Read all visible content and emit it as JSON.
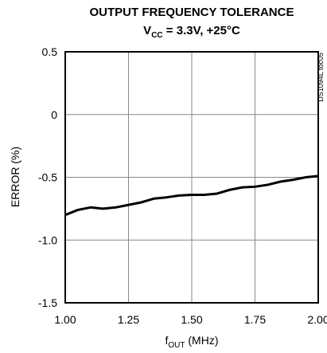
{
  "chart_data": {
    "type": "line",
    "title": "OUTPUT FREQUENCY TOLERANCE",
    "subtitle": [
      "V",
      "CC",
      " = 3.3V, +25°C"
    ],
    "x_label": [
      "f",
      "OUT",
      " (MHz)"
    ],
    "y_label": "ERROR (%)",
    "annotation": "DS1094L toc05",
    "x": [
      1.0,
      1.05,
      1.1,
      1.15,
      1.2,
      1.25,
      1.3,
      1.35,
      1.4,
      1.45,
      1.5,
      1.55,
      1.6,
      1.65,
      1.7,
      1.75,
      1.8,
      1.85,
      1.9,
      1.95,
      2.0
    ],
    "series": [
      {
        "color": "#000000",
        "values": [
          -0.8,
          -0.76,
          -0.74,
          -0.75,
          -0.74,
          -0.72,
          -0.7,
          -0.67,
          -0.66,
          -0.645,
          -0.64,
          -0.64,
          -0.63,
          -0.6,
          -0.58,
          -0.575,
          -0.56,
          -0.535,
          -0.52,
          -0.5,
          -0.49
        ]
      }
    ],
    "xlim": [
      1.0,
      2.0
    ],
    "xticks": [
      {
        "value": 1.0,
        "label": "1.00"
      },
      1.25,
      {
        "value": 1.5,
        "label": "1.50"
      },
      1.75,
      {
        "value": 2.0,
        "label": "2.00"
      }
    ],
    "ylim": [
      -1.5,
      0.5
    ],
    "yticks": [
      0.5,
      0,
      -0.5,
      {
        "value": -1.0,
        "label": "-1.0"
      },
      -1.5
    ],
    "grid": true
  }
}
